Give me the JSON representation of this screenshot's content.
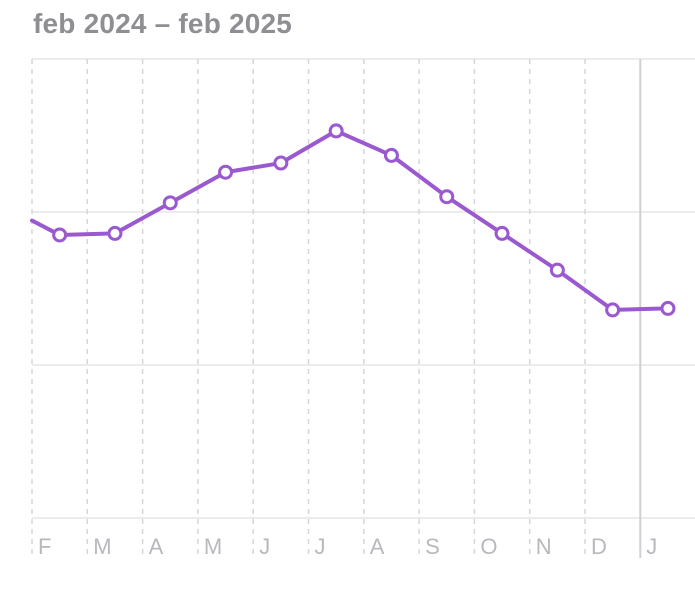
{
  "header": {
    "date_range": "feb 2024 – feb 2025"
  },
  "colors": {
    "line": "#9b59d0",
    "grid": "#e6e6e9",
    "dashed_grid": "#d6d6da",
    "today_line": "#d0d0d4",
    "axis_label": "#b8b8bd",
    "title": "#8e8e93"
  },
  "chart_data": {
    "type": "line",
    "title": "",
    "xlabel": "",
    "ylabel": "",
    "categories": [
      "F",
      "M",
      "A",
      "M",
      "J",
      "J",
      "A",
      "S",
      "O",
      "N",
      "D",
      "J"
    ],
    "series": [
      {
        "values": [
          3.85,
          3.86,
          4.06,
          4.26,
          4.32,
          4.53,
          4.37,
          4.1,
          3.86,
          3.62,
          3.36,
          3.37
        ]
      }
    ],
    "ylim": [
      2,
      5
    ],
    "grid": true,
    "legend": "none"
  }
}
